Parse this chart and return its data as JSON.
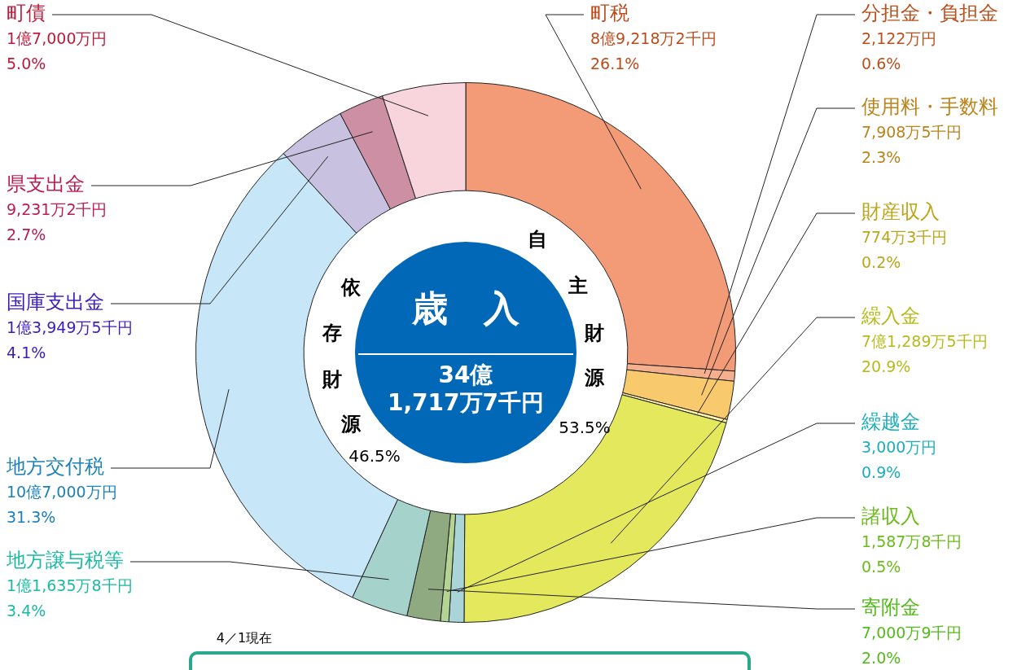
{
  "chart_data": {
    "type": "donut",
    "title": "歳　入",
    "subtitle": "34億\n1,717万7千円",
    "categories": [
      "町税",
      "分担金・負担金",
      "使用料・手数料",
      "財産収入",
      "繰入金",
      "繰越金",
      "諸収入",
      "寄附金",
      "地方譲与税等",
      "地方交付税",
      "国庫支出金",
      "県支出金",
      "町債"
    ],
    "values": [
      26.1,
      0.6,
      2.3,
      0.2,
      20.9,
      0.9,
      0.5,
      2.0,
      3.4,
      31.3,
      4.1,
      2.7,
      5.0
    ],
    "colors": [
      "#f29b76",
      "#f5b08e",
      "#f9c96e",
      "#fff4a8",
      "#e4e85c",
      "#a9d4d8",
      "#b4d494",
      "#8faa80",
      "#a5d3cc",
      "#c7e6f8",
      "#c8c2e0",
      "#cc8fa3",
      "#f8d5dc"
    ],
    "value_labels": [
      "8億9,218万2千円\n26.1%",
      "2,122万円\n0.6%",
      "7,908万5千円\n2.3%",
      "774万3千円\n0.2%",
      "7億1,289万5千円\n20.9%",
      "3,000万円\n0.9%",
      "1,587万8千円\n0.5%",
      "7,000万9千円\n2.0%",
      "1億1,635万8千円\n3.4%",
      "10億7,000万円\n31.3%",
      "1億3,949万5千円\n4.1%",
      "9,231万2千円\n2.7%",
      "1億7,000万円\n5.0%"
    ],
    "annotations": [
      "自主財源",
      "53.5%",
      "依存財源",
      "46.5%",
      "4／1現在"
    ],
    "legend": false
  }
}
